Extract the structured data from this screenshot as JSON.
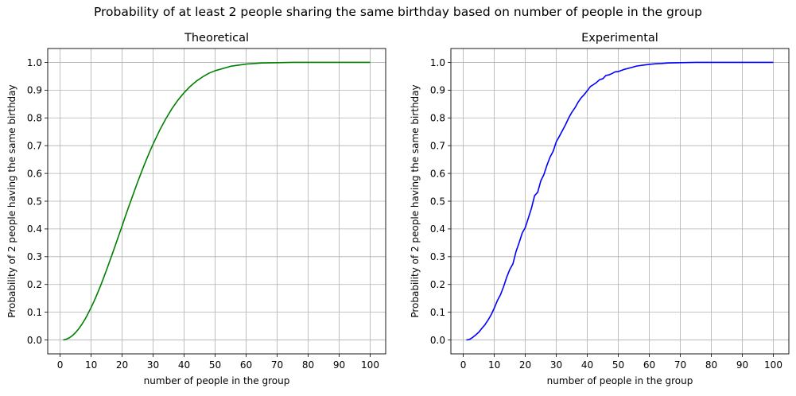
{
  "figure": {
    "title": "Probability of at least 2 people sharing the same birthday based on number of people in the group"
  },
  "chart_data": [
    {
      "type": "line",
      "title": "Theoretical",
      "xlabel": "number of people in the group",
      "ylabel": "Probability of 2 people having the same birthday",
      "xlim": [
        -4,
        105
      ],
      "ylim": [
        -0.05,
        1.05
      ],
      "xticks": [
        0,
        10,
        20,
        30,
        40,
        50,
        60,
        70,
        80,
        90,
        100
      ],
      "yticks": [
        0.0,
        0.1,
        0.2,
        0.3,
        0.4,
        0.5,
        0.6,
        0.7,
        0.8,
        0.9,
        1.0
      ],
      "grid": true,
      "color": "#008000",
      "series": [
        {
          "x": [
            1,
            2,
            3,
            4,
            5,
            6,
            7,
            8,
            9,
            10,
            11,
            12,
            13,
            14,
            15,
            16,
            17,
            18,
            19,
            20,
            21,
            22,
            23,
            24,
            25,
            26,
            27,
            28,
            29,
            30,
            32,
            34,
            36,
            38,
            40,
            42,
            44,
            46,
            48,
            50,
            55,
            60,
            65,
            70,
            75,
            80,
            90,
            100
          ],
          "values": [
            0.0,
            0.003,
            0.008,
            0.016,
            0.027,
            0.04,
            0.056,
            0.074,
            0.095,
            0.117,
            0.141,
            0.167,
            0.194,
            0.223,
            0.253,
            0.284,
            0.315,
            0.347,
            0.379,
            0.411,
            0.444,
            0.476,
            0.507,
            0.538,
            0.569,
            0.598,
            0.627,
            0.654,
            0.681,
            0.706,
            0.753,
            0.795,
            0.832,
            0.864,
            0.891,
            0.914,
            0.933,
            0.948,
            0.961,
            0.97,
            0.986,
            0.994,
            0.998,
            0.999,
            1.0,
            1.0,
            1.0,
            1.0
          ]
        }
      ]
    },
    {
      "type": "line",
      "title": "Experimental",
      "xlabel": "number of people in the group",
      "ylabel": "Probability of 2 people having the same birthday",
      "xlim": [
        -4,
        105
      ],
      "ylim": [
        -0.05,
        1.05
      ],
      "xticks": [
        0,
        10,
        20,
        30,
        40,
        50,
        60,
        70,
        80,
        90,
        100
      ],
      "yticks": [
        0.0,
        0.1,
        0.2,
        0.3,
        0.4,
        0.5,
        0.6,
        0.7,
        0.8,
        0.9,
        1.0
      ],
      "grid": true,
      "color": "#0000ff",
      "series": [
        {
          "x": [
            1,
            2,
            3,
            4,
            5,
            6,
            7,
            8,
            9,
            10,
            11,
            12,
            13,
            14,
            15,
            16,
            17,
            18,
            19,
            20,
            21,
            22,
            23,
            24,
            25,
            26,
            27,
            28,
            29,
            30,
            31,
            32,
            33,
            34,
            35,
            36,
            37,
            38,
            39,
            40,
            41,
            42,
            43,
            44,
            45,
            46,
            47,
            48,
            49,
            50,
            52,
            54,
            56,
            58,
            60,
            62,
            64,
            66,
            70,
            75,
            80,
            90,
            100
          ],
          "values": [
            0.0,
            0.002,
            0.009,
            0.018,
            0.028,
            0.042,
            0.055,
            0.072,
            0.091,
            0.115,
            0.142,
            0.163,
            0.192,
            0.226,
            0.254,
            0.274,
            0.318,
            0.35,
            0.385,
            0.405,
            0.44,
            0.475,
            0.52,
            0.532,
            0.573,
            0.596,
            0.63,
            0.659,
            0.68,
            0.714,
            0.734,
            0.755,
            0.776,
            0.8,
            0.82,
            0.836,
            0.856,
            0.872,
            0.884,
            0.898,
            0.913,
            0.92,
            0.928,
            0.938,
            0.941,
            0.953,
            0.955,
            0.96,
            0.966,
            0.967,
            0.975,
            0.981,
            0.987,
            0.99,
            0.993,
            0.995,
            0.996,
            0.998,
            0.999,
            1.0,
            1.0,
            1.0,
            1.0
          ]
        }
      ]
    }
  ]
}
